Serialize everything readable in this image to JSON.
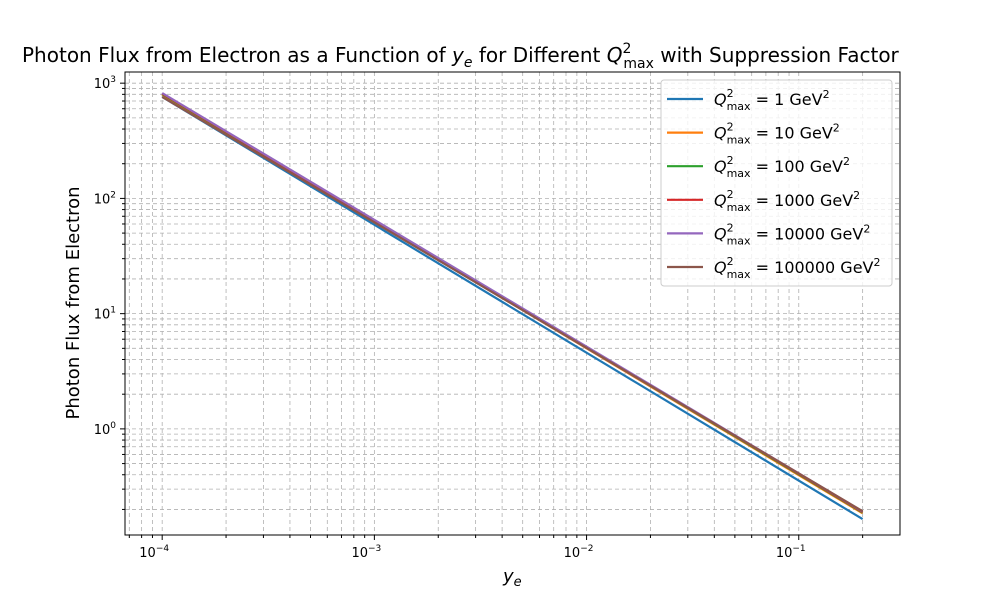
{
  "chart_data": {
    "type": "line",
    "title": {
      "prefix": "Photon Flux from Electron as a Function of ",
      "var_main": "y",
      "var_sub": "e",
      "middle": " for Different ",
      "q_main": "Q",
      "q_sup": "2",
      "q_sub": "max",
      "suffix": " with Suppression Factor"
    },
    "xlabel": {
      "main": "y",
      "sub": "e"
    },
    "ylabel": "Photon Flux from Electron",
    "xscale": "log",
    "yscale": "log",
    "xlim": [
      6.68e-05,
      0.3
    ],
    "ylim": [
      0.12,
      1250
    ],
    "grid": true,
    "legend": {
      "position": "top-right",
      "entries": [
        {
          "q_main": "Q",
          "q_sup": "2",
          "q_sub": "max",
          "eq": " = 1 GeV",
          "unit_sup": "2"
        },
        {
          "q_main": "Q",
          "q_sup": "2",
          "q_sub": "max",
          "eq": " = 10 GeV",
          "unit_sup": "2"
        },
        {
          "q_main": "Q",
          "q_sup": "2",
          "q_sub": "max",
          "eq": " = 100 GeV",
          "unit_sup": "2"
        },
        {
          "q_main": "Q",
          "q_sup": "2",
          "q_sub": "max",
          "eq": " = 1000 GeV",
          "unit_sup": "2"
        },
        {
          "q_main": "Q",
          "q_sup": "2",
          "q_sub": "max",
          "eq": " = 10000 GeV",
          "unit_sup": "2"
        },
        {
          "q_main": "Q",
          "q_sup": "2",
          "q_sub": "max",
          "eq": " = 100000 GeV",
          "unit_sup": "2"
        }
      ]
    },
    "x_ticks": [
      {
        "value": 0.0001,
        "base": "10",
        "exp": "−4"
      },
      {
        "value": 0.001,
        "base": "10",
        "exp": "−3"
      },
      {
        "value": 0.01,
        "base": "10",
        "exp": "−2"
      },
      {
        "value": 0.1,
        "base": "10",
        "exp": "−1"
      }
    ],
    "y_ticks": [
      {
        "value": 1,
        "base": "10",
        "exp": "0"
      },
      {
        "value": 10,
        "base": "10",
        "exp": "1"
      },
      {
        "value": 100,
        "base": "10",
        "exp": "2"
      },
      {
        "value": 1000,
        "base": "10",
        "exp": "3"
      }
    ],
    "series": [
      {
        "color": "#1f77b4",
        "x": [
          0.0001,
          0.2
        ],
        "y": [
          760,
          0.165
        ]
      },
      {
        "color": "#ff7f0e",
        "x": [
          0.0001,
          0.2
        ],
        "y": [
          795,
          0.185
        ]
      },
      {
        "color": "#2ca02c",
        "x": [
          0.0001,
          0.2
        ],
        "y": [
          805,
          0.188
        ]
      },
      {
        "color": "#d62728",
        "x": [
          0.0001,
          0.2
        ],
        "y": [
          812,
          0.19
        ]
      },
      {
        "color": "#9467bd",
        "x": [
          0.0001,
          0.2
        ],
        "y": [
          820,
          0.192
        ]
      },
      {
        "color": "#8c564b",
        "x": [
          0.0001,
          0.2
        ],
        "y": [
          760,
          0.193
        ]
      }
    ]
  }
}
